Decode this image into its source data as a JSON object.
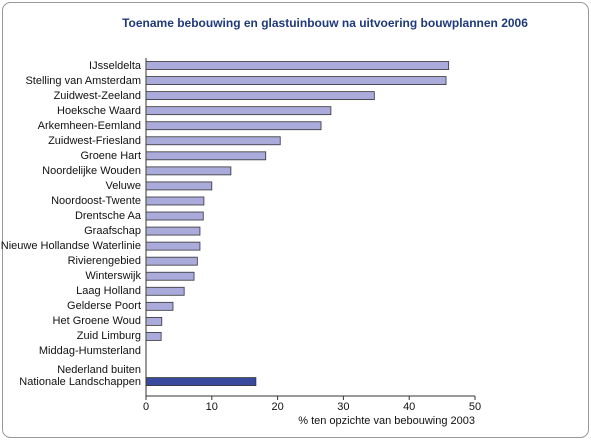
{
  "chart_data": {
    "type": "bar",
    "orientation": "horizontal",
    "title": "Toename bebouwing en glastuinbouw na uitvoering bouwplannen 2006",
    "categories": [
      "IJsseldelta",
      "Stelling van Amsterdam",
      "Zuidwest-Zeeland",
      "Hoeksche Waard",
      "Arkemheen-Eemland",
      "Zuidwest-Friesland",
      "Groene Hart",
      "Noordelijke Wouden",
      "Veluwe",
      "Noordoost-Twente",
      "Drentsche Aa",
      "Graafschap",
      "Nieuwe Hollandse Waterlinie",
      "Rivierengebied",
      "Winterswijk",
      "Laag Holland",
      "Gelderse Poort",
      "Het Groene Woud",
      "Zuid Limburg",
      "Middag-Humsterland",
      null,
      "Nederland buiten\nNationale Landschappen"
    ],
    "values": [
      46.0,
      45.6,
      34.7,
      28.1,
      26.6,
      20.4,
      18.2,
      12.9,
      10.0,
      8.8,
      8.7,
      8.2,
      8.2,
      7.8,
      7.3,
      5.8,
      4.1,
      2.4,
      2.3,
      0,
      null,
      16.7
    ],
    "colors": [
      "#aaaadb",
      "#aaaadb",
      "#aaaadb",
      "#aaaadb",
      "#aaaadb",
      "#aaaadb",
      "#aaaadb",
      "#aaaadb",
      "#aaaadb",
      "#aaaadb",
      "#aaaadb",
      "#aaaadb",
      "#aaaadb",
      "#aaaadb",
      "#aaaadb",
      "#aaaadb",
      "#aaaadb",
      "#aaaadb",
      "#aaaadb",
      "#aaaadb",
      null,
      "#3a4a9c"
    ],
    "xlim": [
      0,
      50
    ],
    "xticks": [
      0,
      10,
      20,
      30,
      40,
      50
    ],
    "xlabel": "% ten opzichte van bebouwing 2003"
  }
}
